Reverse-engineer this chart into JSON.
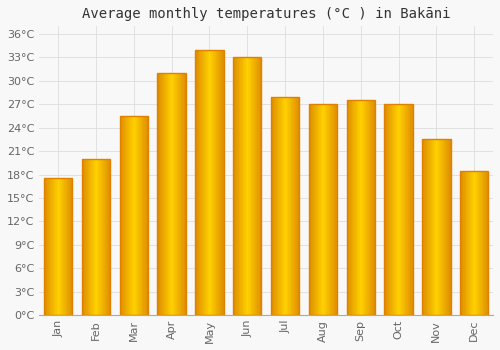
{
  "title": "Average monthly temperatures (°C ) in Bakāni",
  "months": [
    "Jan",
    "Feb",
    "Mar",
    "Apr",
    "May",
    "Jun",
    "Jul",
    "Aug",
    "Sep",
    "Oct",
    "Nov",
    "Dec"
  ],
  "values": [
    17.5,
    20.0,
    25.5,
    31.0,
    34.0,
    33.0,
    28.0,
    27.0,
    27.5,
    27.0,
    22.5,
    18.5
  ],
  "bar_color": "#FFAA00",
  "bar_edge_color": "#E08000",
  "background_color": "#F8F8F8",
  "plot_bg_color": "#F8F8F8",
  "grid_color": "#DDDDDD",
  "ytick_labels": [
    "0°C",
    "3°C",
    "6°C",
    "9°C",
    "12°C",
    "15°C",
    "18°C",
    "21°C",
    "24°C",
    "27°C",
    "30°C",
    "33°C",
    "36°C"
  ],
  "ytick_values": [
    0,
    3,
    6,
    9,
    12,
    15,
    18,
    21,
    24,
    27,
    30,
    33,
    36
  ],
  "ylim": [
    0,
    37
  ],
  "title_fontsize": 10,
  "tick_fontsize": 8,
  "label_color": "#666666"
}
